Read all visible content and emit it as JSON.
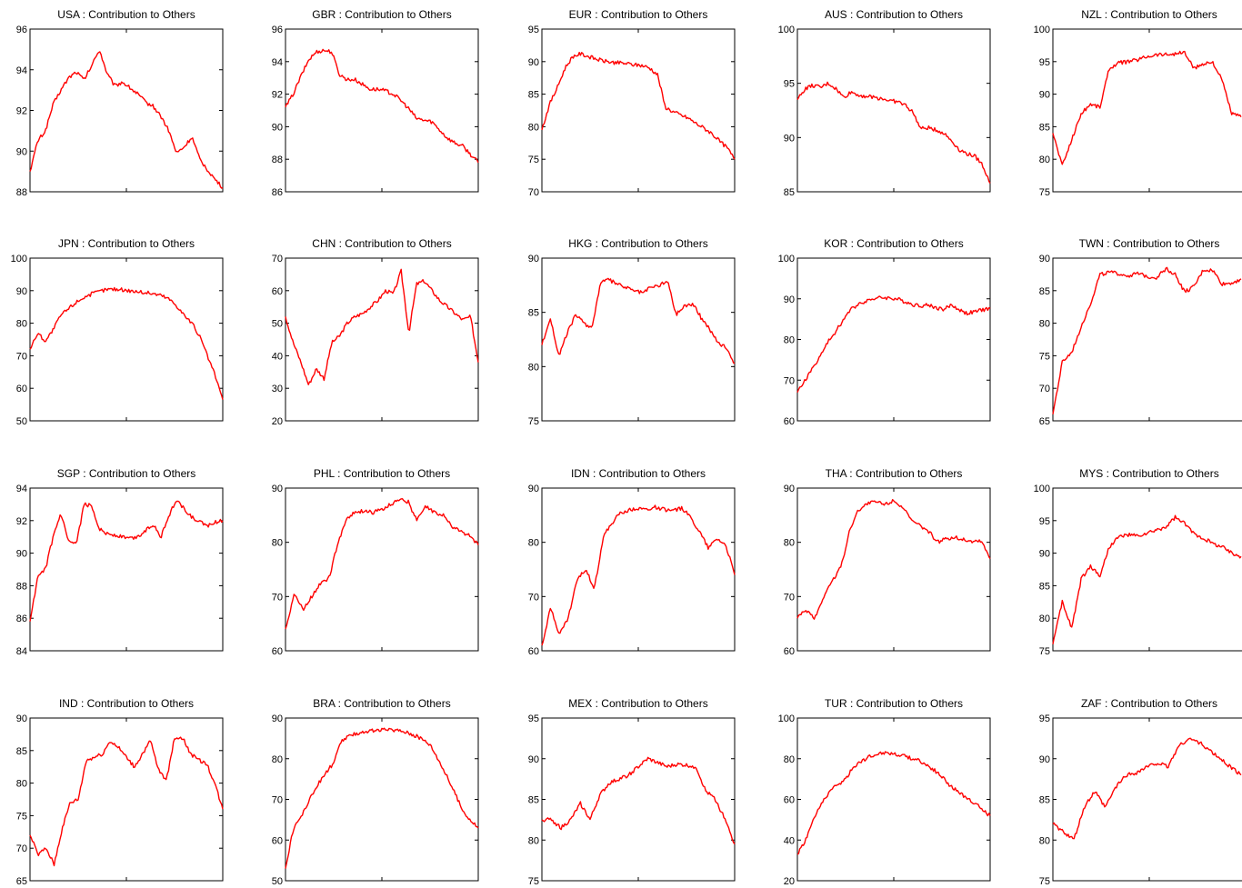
{
  "chart_data": [
    {
      "type": "line",
      "title": "USA :  Contribution to Others",
      "ylim": [
        88,
        96
      ],
      "yticks": [
        88,
        90,
        92,
        94,
        96
      ],
      "series": [
        {
          "color": "#ff0000",
          "values": [
            89.0,
            90.5,
            91.0,
            92.3,
            93.0,
            93.6,
            93.9,
            93.5,
            94.2,
            95.0,
            93.8,
            93.2,
            93.4,
            93.1,
            92.8,
            92.4,
            92.2,
            91.7,
            91.0,
            89.9,
            90.2,
            90.7,
            89.6,
            89.1,
            88.6,
            88.2
          ]
        }
      ]
    },
    {
      "type": "line",
      "title": "GBR :  Contribution to Others",
      "ylim": [
        86,
        96
      ],
      "yticks": [
        86,
        88,
        90,
        92,
        94,
        96
      ],
      "series": [
        {
          "color": "#ff0000",
          "values": [
            91.2,
            92.0,
            93.1,
            94.1,
            94.6,
            94.7,
            94.6,
            93.2,
            92.9,
            92.9,
            92.6,
            92.3,
            92.3,
            92.2,
            92.0,
            91.6,
            91.1,
            90.5,
            90.4,
            90.3,
            89.8,
            89.3,
            89.0,
            88.8,
            88.3,
            87.8
          ]
        }
      ]
    },
    {
      "type": "line",
      "title": "EUR :  Contribution to Others",
      "ylim": [
        70,
        95
      ],
      "yticks": [
        70,
        75,
        80,
        85,
        90,
        95
      ],
      "series": [
        {
          "color": "#ff0000",
          "values": [
            79.5,
            83.5,
            86.0,
            89.0,
            90.8,
            91.2,
            90.8,
            90.4,
            90.1,
            89.9,
            89.8,
            89.7,
            89.5,
            89.4,
            89.0,
            88.0,
            83.0,
            82.3,
            81.8,
            81.3,
            80.5,
            79.8,
            79.0,
            77.8,
            76.8,
            75.0
          ]
        }
      ]
    },
    {
      "type": "line",
      "title": "AUS :  Contribution to Others",
      "ylim": [
        85,
        100
      ],
      "yticks": [
        85,
        90,
        95,
        100
      ],
      "series": [
        {
          "color": "#ff0000",
          "values": [
            93.5,
            94.5,
            94.8,
            94.6,
            95.0,
            94.5,
            93.7,
            94.2,
            93.9,
            93.8,
            93.7,
            93.6,
            93.4,
            93.3,
            93.0,
            92.3,
            90.8,
            90.9,
            90.7,
            90.4,
            89.7,
            88.9,
            88.5,
            88.3,
            87.5,
            85.8
          ]
        }
      ]
    },
    {
      "type": "line",
      "title": "NZL :  Contribution to Others",
      "ylim": [
        75,
        100
      ],
      "yticks": [
        75,
        80,
        85,
        90,
        95,
        100
      ],
      "series": [
        {
          "color": "#ff0000",
          "values": [
            84.0,
            79.0,
            83.0,
            87.0,
            88.5,
            88.0,
            94.0,
            94.8,
            95.0,
            95.3,
            95.8,
            96.1,
            96.1,
            96.2,
            96.4,
            93.9,
            94.7,
            94.9,
            92.0,
            87.0,
            86.5
          ]
        }
      ]
    },
    {
      "type": "line",
      "title": "JPN :  Contribution to Others",
      "ylim": [
        50,
        100
      ],
      "yticks": [
        50,
        60,
        70,
        80,
        90,
        100
      ],
      "series": [
        {
          "color": "#ff0000",
          "values": [
            72.0,
            77.0,
            74.5,
            78.0,
            82.5,
            84.5,
            86.5,
            88.0,
            89.0,
            89.8,
            90.4,
            90.5,
            90.3,
            90.0,
            89.7,
            89.4,
            89.1,
            88.6,
            87.5,
            85.5,
            82.5,
            80.0,
            76.0,
            70.0,
            64.0,
            56.5
          ]
        }
      ]
    },
    {
      "type": "line",
      "title": "CHN :  Contribution to Others",
      "ylim": [
        20,
        70
      ],
      "yticks": [
        20,
        30,
        40,
        50,
        60,
        70
      ],
      "series": [
        {
          "color": "#ff0000",
          "values": [
            52.0,
            44.0,
            38.0,
            31.0,
            36.0,
            33.0,
            44.0,
            46.0,
            50.0,
            52.0,
            53.0,
            55.0,
            57.0,
            60.0,
            59.0,
            66.0,
            47.0,
            62.0,
            63.0,
            60.0,
            57.0,
            55.0,
            53.0,
            51.0,
            52.0,
            38.0
          ]
        }
      ]
    },
    {
      "type": "line",
      "title": "HKG :  Contribution to Others",
      "ylim": [
        75,
        90
      ],
      "yticks": [
        75,
        80,
        85,
        90
      ],
      "series": [
        {
          "color": "#ff0000",
          "values": [
            82.0,
            84.5,
            81.0,
            83.0,
            84.8,
            84.0,
            83.6,
            87.8,
            88.0,
            87.6,
            87.3,
            87.0,
            86.8,
            87.3,
            87.5,
            87.9,
            84.8,
            85.6,
            85.8,
            84.5,
            83.5,
            82.2,
            81.8,
            80.3
          ]
        }
      ]
    },
    {
      "type": "line",
      "title": "KOR :  Contribution to Others",
      "ylim": [
        60,
        100
      ],
      "yticks": [
        60,
        70,
        80,
        90,
        100
      ],
      "series": [
        {
          "color": "#ff0000",
          "values": [
            67.0,
            70.0,
            73.0,
            76.0,
            79.5,
            82.0,
            85.0,
            87.5,
            88.8,
            89.6,
            90.1,
            90.3,
            90.2,
            89.9,
            89.3,
            88.6,
            88.3,
            88.5,
            87.8,
            87.4,
            88.5,
            87.3,
            86.4,
            86.8,
            87.3,
            87.6
          ]
        }
      ]
    },
    {
      "type": "line",
      "title": "TWN :  Contribution to Others",
      "ylim": [
        65,
        90
      ],
      "yticks": [
        65,
        70,
        75,
        80,
        85,
        90
      ],
      "series": [
        {
          "color": "#ff0000",
          "values": [
            66.0,
            74.0,
            75.5,
            79.5,
            83.0,
            87.5,
            87.8,
            87.6,
            87.3,
            87.6,
            87.2,
            87.0,
            88.4,
            87.5,
            84.8,
            85.6,
            88.2,
            88.1,
            86.0,
            86.2,
            86.8
          ]
        }
      ]
    },
    {
      "type": "line",
      "title": "SGP :  Contribution to Others",
      "ylim": [
        84,
        94
      ],
      "yticks": [
        84,
        86,
        88,
        90,
        92,
        94
      ],
      "series": [
        {
          "color": "#ff0000",
          "values": [
            85.8,
            88.5,
            89.0,
            91.0,
            92.4,
            90.7,
            90.5,
            93.0,
            92.9,
            91.5,
            91.2,
            91.1,
            91.0,
            90.9,
            91.0,
            91.4,
            91.8,
            91.0,
            92.3,
            93.3,
            92.7,
            92.2,
            91.9,
            91.7,
            91.9,
            92.0
          ]
        }
      ]
    },
    {
      "type": "line",
      "title": "PHL :  Contribution to Others",
      "ylim": [
        60,
        90
      ],
      "yticks": [
        60,
        70,
        80,
        90
      ],
      "series": [
        {
          "color": "#ff0000",
          "values": [
            64.0,
            70.5,
            67.5,
            70.0,
            72.5,
            73.5,
            80.0,
            84.5,
            85.5,
            85.8,
            85.5,
            86.0,
            87.0,
            88.0,
            87.5,
            84.0,
            86.5,
            85.6,
            85.0,
            83.0,
            82.0,
            81.3,
            79.5
          ]
        }
      ]
    },
    {
      "type": "line",
      "title": "IDN :  Contribution to Others",
      "ylim": [
        60,
        90
      ],
      "yticks": [
        60,
        70,
        80,
        90
      ],
      "series": [
        {
          "color": "#ff0000",
          "values": [
            61.0,
            68.0,
            63.0,
            66.0,
            73.0,
            75.0,
            71.5,
            81.0,
            83.5,
            85.5,
            86.0,
            86.3,
            86.0,
            86.5,
            86.0,
            85.8,
            86.3,
            84.5,
            82.0,
            79.0,
            80.8,
            79.5,
            74.0
          ]
        }
      ]
    },
    {
      "type": "line",
      "title": "THA :  Contribution to Others",
      "ylim": [
        60,
        90
      ],
      "yticks": [
        60,
        70,
        80,
        90
      ],
      "series": [
        {
          "color": "#ff0000",
          "values": [
            66.0,
            67.5,
            66.0,
            70.0,
            73.0,
            75.5,
            82.5,
            86.0,
            87.2,
            87.5,
            87.0,
            87.8,
            86.5,
            84.0,
            83.0,
            82.0,
            80.0,
            80.6,
            81.0,
            80.5,
            80.2,
            80.3,
            77.0
          ]
        }
      ]
    },
    {
      "type": "line",
      "title": "MYS :  Contribution to Others",
      "ylim": [
        75,
        100
      ],
      "yticks": [
        75,
        80,
        85,
        90,
        95,
        100
      ],
      "series": [
        {
          "color": "#ff0000",
          "values": [
            76.0,
            82.5,
            78.5,
            86.0,
            88.0,
            86.5,
            91.0,
            92.5,
            92.8,
            92.6,
            93.0,
            93.5,
            94.0,
            95.5,
            94.5,
            93.0,
            92.3,
            91.5,
            91.0,
            90.0,
            89.5
          ]
        }
      ]
    },
    {
      "type": "line",
      "title": "IND :  Contribution to Others",
      "ylim": [
        65,
        90
      ],
      "yticks": [
        65,
        70,
        75,
        80,
        85,
        90
      ],
      "series": [
        {
          "color": "#ff0000",
          "values": [
            72.0,
            69.0,
            70.0,
            67.5,
            73.0,
            77.0,
            77.5,
            83.5,
            84.0,
            84.5,
            86.5,
            85.5,
            84.0,
            82.5,
            84.5,
            86.5,
            82.0,
            80.5,
            87.0,
            87.0,
            84.5,
            83.5,
            83.0,
            80.0,
            76.0
          ]
        }
      ]
    },
    {
      "type": "line",
      "title": "BRA :  Contribution to Others",
      "ylim": [
        50,
        90
      ],
      "yticks": [
        50,
        60,
        70,
        80,
        90
      ],
      "series": [
        {
          "color": "#ff0000",
          "values": [
            53.0,
            63.0,
            66.0,
            70.0,
            73.5,
            76.5,
            79.0,
            84.5,
            85.5,
            86.3,
            86.7,
            86.9,
            87.0,
            87.1,
            87.0,
            86.6,
            85.8,
            84.9,
            83.5,
            80.0,
            76.0,
            72.0,
            67.5,
            65.0,
            63.0
          ]
        }
      ]
    },
    {
      "type": "line",
      "title": "MEX :  Contribution to Others",
      "ylim": [
        75,
        95
      ],
      "yticks": [
        75,
        80,
        85,
        90,
        95
      ],
      "series": [
        {
          "color": "#ff0000",
          "values": [
            82.5,
            82.5,
            81.5,
            82.5,
            84.5,
            82.5,
            85.5,
            87.0,
            87.5,
            88.0,
            89.0,
            90.0,
            89.5,
            89.0,
            89.3,
            89.2,
            89.0,
            86.0,
            85.0,
            82.5,
            79.5
          ]
        }
      ]
    },
    {
      "type": "line",
      "title": "TUR :  Contribution to Others",
      "ylim": [
        20,
        100
      ],
      "yticks": [
        20,
        40,
        60,
        80,
        100
      ],
      "series": [
        {
          "color": "#ff0000",
          "values": [
            33.0,
            40.0,
            50.0,
            58.0,
            64.0,
            67.0,
            70.0,
            76.0,
            79.0,
            81.0,
            82.5,
            83.0,
            82.5,
            81.5,
            80.5,
            79.5,
            77.0,
            74.5,
            71.0,
            67.0,
            63.5,
            61.0,
            58.5,
            55.0,
            52.0
          ]
        }
      ]
    },
    {
      "type": "line",
      "title": "ZAF :  Contribution to Others",
      "ylim": [
        75,
        95
      ],
      "yticks": [
        75,
        80,
        85,
        90,
        95
      ],
      "series": [
        {
          "color": "#ff0000",
          "values": [
            82.0,
            81.0,
            80.0,
            84.0,
            86.0,
            84.0,
            86.5,
            88.0,
            88.3,
            89.0,
            89.5,
            89.0,
            91.5,
            92.5,
            92.0,
            91.0,
            90.0,
            89.0,
            88.0
          ]
        }
      ]
    }
  ]
}
